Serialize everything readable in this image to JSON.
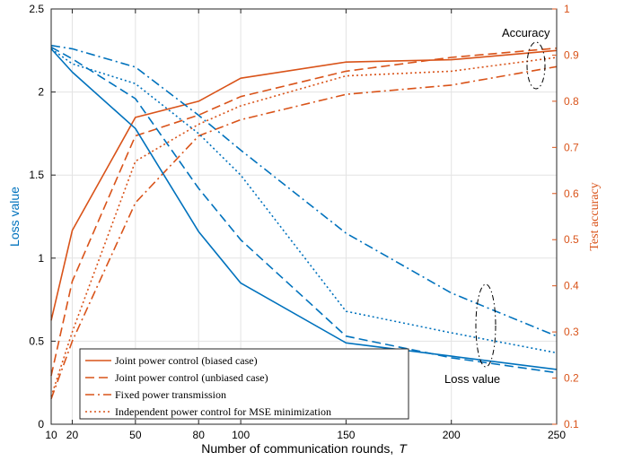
{
  "chart_data": {
    "type": "line",
    "xlabel": "Number of communication rounds,",
    "xlabel_var": "T",
    "ylabel_left": "Loss value",
    "ylabel_right": "Test accuracy",
    "x_ticks": [
      10,
      20,
      50,
      80,
      100,
      150,
      200,
      250
    ],
    "x_range": [
      10,
      250
    ],
    "y_left_ticks": [
      0,
      0.5,
      1,
      1.5,
      2,
      2.5
    ],
    "y_left_range": [
      0,
      2.5
    ],
    "y_right_ticks": [
      0.1,
      0.2,
      0.3,
      0.4,
      0.5,
      0.6,
      0.7,
      0.8,
      0.9,
      1
    ],
    "y_right_range": [
      0.1,
      1.0
    ],
    "grid": true,
    "legend_position": "bottom-left",
    "colors": {
      "loss": "#0072BD",
      "accuracy": "#D95319",
      "grid": "#e3e3e3"
    },
    "x": [
      10,
      20,
      50,
      80,
      100,
      150,
      200,
      250
    ],
    "loss_series": [
      {
        "legend_index": 0,
        "dash": "solid",
        "values": [
          2.26,
          2.12,
          1.78,
          1.16,
          0.85,
          0.49,
          0.41,
          0.33
        ]
      },
      {
        "legend_index": 1,
        "dash": "dashed",
        "values": [
          2.27,
          2.2,
          1.96,
          1.42,
          1.11,
          0.53,
          0.4,
          0.31
        ]
      },
      {
        "legend_index": 2,
        "dash": "dashdot",
        "values": [
          2.28,
          2.26,
          2.15,
          1.86,
          1.65,
          1.15,
          0.79,
          0.53
        ]
      },
      {
        "legend_index": 3,
        "dash": "dotted",
        "values": [
          2.26,
          2.17,
          2.05,
          1.75,
          1.5,
          0.68,
          0.55,
          0.43
        ]
      }
    ],
    "accuracy_series": [
      {
        "legend_index": 0,
        "dash": "solid",
        "values": [
          0.325,
          0.52,
          0.765,
          0.8,
          0.85,
          0.885,
          0.89,
          0.91
        ]
      },
      {
        "legend_index": 1,
        "dash": "dashed",
        "values": [
          0.205,
          0.41,
          0.725,
          0.77,
          0.81,
          0.865,
          0.895,
          0.915
        ]
      },
      {
        "legend_index": 2,
        "dash": "dashdot",
        "values": [
          0.155,
          0.28,
          0.58,
          0.725,
          0.76,
          0.815,
          0.835,
          0.875
        ]
      },
      {
        "legend_index": 3,
        "dash": "dotted",
        "values": [
          0.16,
          0.3,
          0.67,
          0.75,
          0.79,
          0.855,
          0.865,
          0.895
        ]
      }
    ],
    "legend": [
      "Joint power control (biased case)",
      "Joint power control (unbiased case)",
      "Fixed power transmission",
      "Independent power control for MSE minimization"
    ],
    "annotations": {
      "accuracy": "Accuracy",
      "loss": "Loss value"
    }
  }
}
